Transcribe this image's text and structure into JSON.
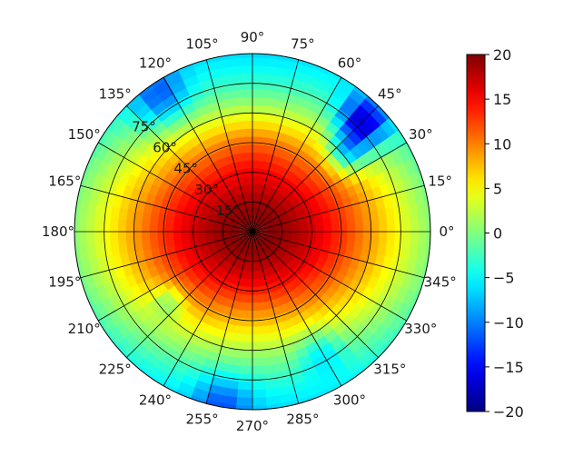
{
  "chart_data": {
    "type": "heatmap",
    "projection": "polar",
    "colormap": "jet",
    "title": "",
    "angular_ticks": [
      "0°",
      "15°",
      "30°",
      "45°",
      "60°",
      "75°",
      "90°",
      "105°",
      "120°",
      "135°",
      "150°",
      "165°",
      "180°",
      "195°",
      "210°",
      "225°",
      "240°",
      "255°",
      "270°",
      "285°",
      "300°",
      "315°",
      "330°",
      "345°"
    ],
    "angular_tick_values": [
      0,
      15,
      30,
      45,
      60,
      75,
      90,
      105,
      120,
      135,
      150,
      165,
      180,
      195,
      210,
      225,
      240,
      255,
      270,
      285,
      300,
      315,
      330,
      345
    ],
    "radial_ticks": [
      "15°",
      "30°",
      "45°",
      "60°",
      "75°"
    ],
    "radial_tick_values": [
      15,
      30,
      45,
      60,
      75
    ],
    "radial_label_angle": 135,
    "rlim": [
      0,
      90
    ],
    "grid": true,
    "colorbar": {
      "ticks": [
        "−20",
        "−15",
        "−10",
        "−5",
        "0",
        "5",
        "10",
        "15",
        "20"
      ],
      "tick_values": [
        -20,
        -15,
        -10,
        -5,
        0,
        5,
        10,
        15,
        20
      ],
      "vmin": -20,
      "vmax": 20,
      "position": "right"
    },
    "field_peak_value": 20,
    "field_edge_value": -10
  }
}
